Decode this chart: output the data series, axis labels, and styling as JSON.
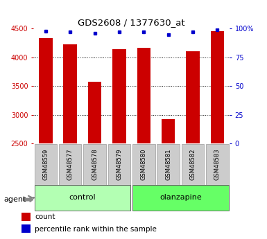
{
  "title": "GDS2608 / 1377630_at",
  "samples": [
    "GSM48559",
    "GSM48577",
    "GSM48578",
    "GSM48579",
    "GSM48580",
    "GSM48581",
    "GSM48582",
    "GSM48583"
  ],
  "counts": [
    4330,
    4230,
    3570,
    4140,
    4170,
    2920,
    4110,
    4460
  ],
  "percentile_ranks": [
    98,
    97,
    96,
    97,
    97,
    95,
    97,
    99
  ],
  "bar_color": "#cc0000",
  "dot_color": "#0000cc",
  "ymin": 2500,
  "ymax": 4500,
  "yticks_left": [
    2500,
    3000,
    3500,
    4000,
    4500
  ],
  "yticks_right": [
    0,
    25,
    50,
    75,
    100
  ],
  "right_yticklabels": [
    "0",
    "25",
    "50",
    "75",
    "100%"
  ],
  "grid_lines": [
    3000,
    3500,
    4000
  ],
  "bg_color": "#ffffff",
  "bar_width": 0.55,
  "ctrl_color": "#b3ffb3",
  "olanz_color": "#66ff66",
  "label_bg": "#cccccc",
  "legend_count_label": "count",
  "legend_pct_label": "percentile rank within the sample",
  "agent_label": "agent",
  "control_label": "control",
  "olanzapine_label": "olanzapine",
  "ylabel_left_color": "#cc0000",
  "ylabel_right_color": "#0000cc",
  "title_color": "#000000"
}
